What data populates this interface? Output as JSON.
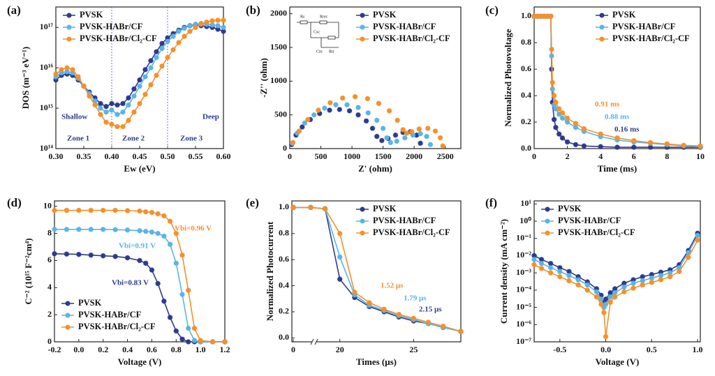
{
  "chart_data": [
    {
      "type": "line",
      "label": "(a)",
      "x_label": "Ew (eV)",
      "y_label": "DOS (m⁻³ eV⁻¹)",
      "ylog": true,
      "legend": "upper left",
      "xlim": [
        0.3,
        0.6
      ],
      "ylim": [
        100000000000000.0,
        3.2e+17
      ],
      "xticks": [
        {
          "value": 0.3,
          "label": "0.30"
        },
        0.35,
        {
          "value": 0.4,
          "label": "0.40"
        },
        0.45,
        {
          "value": 0.5,
          "label": "0.50"
        },
        0.55,
        {
          "value": 0.6,
          "label": "0.60"
        }
      ],
      "yticks": [
        {
          "value": 100000000000000.0,
          "label": "10¹⁴"
        },
        {
          "value": 1000000000000000.0,
          "label": "10¹⁵"
        },
        {
          "value": 1e+16,
          "label": "10¹⁶"
        },
        {
          "value": 1e+17,
          "label": "10¹⁷"
        }
      ],
      "vlines": [
        0.4,
        0.5
      ],
      "annotations": [
        {
          "text": "Shallow",
          "color": "#2e3a8c"
        },
        {
          "text": "Zone 1",
          "color": "#2e3a8c"
        },
        {
          "text": "Zone 2",
          "color": "#2e3a8c"
        },
        {
          "text": "Zone 3",
          "color": "#2e3a8c"
        },
        {
          "text": "Deep",
          "color": "#2e3a8c"
        }
      ],
      "x": [
        0.3,
        0.31,
        0.32,
        0.33,
        0.34,
        0.35,
        0.36,
        0.37,
        0.38,
        0.39,
        0.4,
        0.41,
        0.42,
        0.43,
        0.44,
        0.45,
        0.46,
        0.47,
        0.48,
        0.49,
        0.5,
        0.51,
        0.52,
        0.53,
        0.54,
        0.55,
        0.56,
        0.57,
        0.58,
        0.59,
        0.6
      ],
      "series": [
        {
          "name": "PVSK",
          "color": "#2e3a8c",
          "values": [
            5000000000000000.0,
            6500000000000000.0,
            7000000000000000.0,
            6500000000000000.0,
            5000000000000000.0,
            3500000000000000.0,
            2500000000000000.0,
            1800000000000000.0,
            1300000000000000.0,
            1100000000000000.0,
            1300000000000000.0,
            1200000000000000.0,
            1300000000000000.0,
            1800000000000000.0,
            3000000000000000.0,
            5000000000000000.0,
            9000000000000000.0,
            1.5e+16,
            2.5e+16,
            4e+16,
            5.5e+16,
            7e+16,
            8.5e+16,
            1e+17,
            1.1e+17,
            1.15e+17,
            1.1e+17,
            1.05e+17,
            1e+17,
            9e+16,
            8e+16
          ]
        },
        {
          "name": "PVSK-HABr/CF",
          "color": "#5ab4e5",
          "values": [
            6000000000000000.0,
            7500000000000000.0,
            8000000000000000.0,
            7500000000000000.0,
            5500000000000000.0,
            3500000000000000.0,
            2300000000000000.0,
            1500000000000000.0,
            1000000000000000.0,
            800000000000000.0,
            900000000000000.0,
            700000000000000.0,
            800000000000000.0,
            1200000000000000.0,
            2000000000000000.0,
            3500000000000000.0,
            6000000000000000.0,
            1e+16,
            1.8e+16,
            3e+16,
            4.5e+16,
            6e+16,
            8e+16,
            9.5e+16,
            1.1e+17,
            1.2e+17,
            1.25e+17,
            1.2e+17,
            1.15e+17,
            1.1e+17,
            1e+17
          ]
        },
        {
          "name": "PVSK-HABr/Cl₂-CF",
          "color": "#f5902a",
          "values": [
            7000000000000000.0,
            9000000000000000.0,
            1e+16,
            9000000000000000.0,
            6000000000000000.0,
            3500000000000000.0,
            2000000000000000.0,
            1200000000000000.0,
            700000000000000.0,
            450000000000000.0,
            400000000000000.0,
            350000000000000.0,
            350000000000000.0,
            500000000000000.0,
            800000000000000.0,
            1300000000000000.0,
            2200000000000000.0,
            3800000000000000.0,
            6500000000000000.0,
            1.1e+16,
            1.8e+16,
            2.8e+16,
            4.2e+16,
            6e+16,
            8e+16,
            1e+17,
            1.2e+17,
            1.35e+17,
            1.45e+17,
            1.5e+17,
            1.5e+17
          ]
        }
      ]
    },
    {
      "type": "scatter",
      "label": "(b)",
      "x_label": "Z' (ohm)",
      "y_label": "-Z'' (ohm)",
      "legend": "upper right",
      "xlim": [
        0,
        2750
      ],
      "ylim": [
        0,
        2100
      ],
      "xticks": [
        0,
        500,
        1000,
        1500,
        2000,
        2500
      ],
      "yticks": [
        0,
        500,
        1000,
        1500,
        2000
      ],
      "inset_labels": [
        "Rs",
        "Rrec",
        "Csc",
        "Cm",
        "Rtr"
      ],
      "series": [
        {
          "name": "PVSK",
          "color": "#2e3a8c",
          "x": [
            30,
            100,
            200,
            330,
            480,
            640,
            800,
            960,
            1100,
            1230,
            1330,
            1400,
            1480,
            1580,
            1700,
            1820,
            1940,
            2040,
            2100
          ],
          "values": [
            60,
            200,
            320,
            430,
            520,
            570,
            580,
            560,
            500,
            410,
            300,
            180,
            120,
            150,
            200,
            240,
            250,
            200,
            80
          ]
        },
        {
          "name": "PVSK-HABr/CF",
          "color": "#5ab4e5",
          "x": [
            40,
            120,
            240,
            390,
            560,
            740,
            920,
            1100,
            1260,
            1400,
            1500,
            1560,
            1620,
            1720,
            1850,
            1980,
            2100,
            2200,
            2260
          ],
          "values": [
            80,
            230,
            380,
            500,
            600,
            650,
            650,
            610,
            530,
            420,
            300,
            160,
            90,
            110,
            160,
            200,
            220,
            180,
            60
          ]
        },
        {
          "name": "PVSK-HABr/Cl₂-CF",
          "color": "#f5902a",
          "x": [
            50,
            150,
            290,
            460,
            650,
            850,
            1050,
            1250,
            1430,
            1600,
            1730,
            1820,
            1880,
            1960,
            2080,
            2220,
            2340,
            2420,
            2460
          ],
          "values": [
            90,
            260,
            430,
            570,
            680,
            750,
            770,
            740,
            670,
            560,
            420,
            280,
            230,
            250,
            290,
            300,
            260,
            160,
            40
          ]
        }
      ]
    },
    {
      "type": "line",
      "label": "(c)",
      "x_label": "Time (ms)",
      "y_label": "Normalized Photovoltage",
      "legend": "upper right",
      "xlim": [
        0,
        10
      ],
      "ylim": [
        0,
        1.07
      ],
      "xticks": [
        0,
        2,
        4,
        6,
        8,
        10
      ],
      "yticks": [
        {
          "value": 0,
          "label": "0.0"
        },
        0.2,
        0.4,
        0.6,
        0.8,
        {
          "value": 1,
          "label": "1.0"
        }
      ],
      "annotations": [
        {
          "text": "0.91 ms",
          "color": "#f5902a"
        },
        {
          "text": "0.88 ms",
          "color": "#5ab4e5"
        },
        {
          "text": "0.16 ms",
          "color": "#2e3a8c"
        }
      ],
      "x": [
        0,
        0.2,
        0.4,
        0.6,
        0.8,
        1,
        1.05,
        1.1,
        1.2,
        1.3,
        1.5,
        1.7,
        2,
        2.5,
        3,
        4,
        5,
        6,
        7,
        8,
        9,
        10
      ],
      "series": [
        {
          "name": "PVSK",
          "color": "#2e3a8c",
          "values": [
            1,
            1,
            1,
            1,
            1,
            1,
            0.6,
            0.35,
            0.22,
            0.16,
            0.11,
            0.08,
            0.05,
            0.03,
            0.02,
            0.015,
            0.01,
            0.01,
            0.01,
            0.01,
            0.01,
            0.01
          ]
        },
        {
          "name": "PVSK-HABr/CF",
          "color": "#5ab4e5",
          "values": [
            1,
            1,
            1,
            1,
            1,
            1,
            0.7,
            0.45,
            0.33,
            0.3,
            0.26,
            0.23,
            0.2,
            0.16,
            0.13,
            0.09,
            0.065,
            0.05,
            0.04,
            0.03,
            0.02,
            0.015
          ]
        },
        {
          "name": "PVSK-HABr/Cl₂-CF",
          "color": "#f5902a",
          "values": [
            1,
            1,
            1,
            1,
            1,
            1,
            0.75,
            0.5,
            0.4,
            0.35,
            0.3,
            0.27,
            0.23,
            0.19,
            0.15,
            0.11,
            0.08,
            0.06,
            0.045,
            0.035,
            0.025,
            0.02
          ]
        }
      ]
    },
    {
      "type": "line",
      "label": "(d)",
      "x_label": "Voltage (V)",
      "y_label": "C⁻² (10¹⁵ F⁻²cm⁴)",
      "legend": "lower left",
      "xlim": [
        -0.2,
        1.2
      ],
      "ylim": [
        0,
        10.4
      ],
      "xticks": [
        -0.2,
        {
          "value": 0,
          "label": "0.0"
        },
        0.2,
        0.4,
        0.6,
        0.8,
        {
          "value": 1,
          "label": "1.0"
        },
        1.2
      ],
      "yticks": [
        0,
        2,
        4,
        6,
        8,
        10
      ],
      "annotations": [
        {
          "text": "Vbi=0.83 V",
          "color": "#2e3a8c"
        },
        {
          "text": "Vbi=0.91 V",
          "color": "#5ab4e5"
        },
        {
          "text": "Vbi=0.96 V",
          "color": "#f5902a"
        }
      ],
      "x": [
        -0.2,
        -0.1,
        0,
        0.1,
        0.2,
        0.3,
        0.4,
        0.5,
        0.55,
        0.6,
        0.65,
        0.7,
        0.75,
        0.8,
        0.85,
        0.9,
        0.95,
        1,
        1.1,
        1.2
      ],
      "series": [
        {
          "name": "PVSK",
          "color": "#2e3a8c",
          "values": [
            6.5,
            6.48,
            6.45,
            6.4,
            6.35,
            6.3,
            6.2,
            6,
            5.8,
            5.3,
            4.3,
            3,
            1.8,
            0.8,
            0.2,
            0,
            0,
            0,
            0,
            0
          ]
        },
        {
          "name": "PVSK-HABr/CF",
          "color": "#5ab4e5",
          "values": [
            8.3,
            8.3,
            8.3,
            8.3,
            8.3,
            8.28,
            8.25,
            8.2,
            8.15,
            8.1,
            8,
            7.8,
            7.2,
            5.8,
            3.5,
            1,
            0.1,
            0,
            0,
            0
          ]
        },
        {
          "name": "PVSK-HABr/Cl₂-CF",
          "color": "#f5902a",
          "values": [
            9.7,
            9.7,
            9.7,
            9.7,
            9.7,
            9.7,
            9.68,
            9.65,
            9.6,
            9.55,
            9.45,
            9.3,
            8.9,
            8,
            6.4,
            3.8,
            1,
            0.1,
            0,
            0
          ]
        }
      ]
    },
    {
      "type": "line",
      "label": "(e)",
      "x_label": "Times (μs)",
      "y_label": "Normalized Photocurrent",
      "legend": "upper right",
      "xlim": [
        0,
        28.2
      ],
      "xbreak": [
        3,
        18.5
      ],
      "ylim": [
        -0.03,
        1.05
      ],
      "xticks": [
        0,
        20,
        25
      ],
      "yticks": [
        {
          "value": 0,
          "label": "0.0"
        },
        0.2,
        0.4,
        0.6,
        0.8,
        {
          "value": 1,
          "label": "1.0"
        }
      ],
      "annotations": [
        {
          "text": "1.52 μs",
          "color": "#f5902a"
        },
        {
          "text": "1.79 μs",
          "color": "#5ab4e5"
        },
        {
          "text": "2.15 μs",
          "color": "#2e3a8c"
        }
      ],
      "x": [
        0,
        3,
        19,
        20,
        21,
        22,
        23,
        24,
        25,
        26,
        27,
        28.2
      ],
      "series": [
        {
          "name": "PVSK",
          "color": "#2e3a8c",
          "values": [
            1,
            1,
            0.99,
            0.45,
            0.31,
            0.24,
            0.2,
            0.16,
            0.13,
            0.11,
            0.08,
            0.05
          ]
        },
        {
          "name": "PVSK-HABr/CF",
          "color": "#5ab4e5",
          "values": [
            1,
            1,
            0.99,
            0.62,
            0.33,
            0.25,
            0.21,
            0.17,
            0.14,
            0.11,
            0.08,
            0.05
          ]
        },
        {
          "name": "PVSK-HABr/Cl₂-CF",
          "color": "#f5902a",
          "values": [
            1,
            1,
            0.99,
            0.8,
            0.35,
            0.27,
            0.22,
            0.18,
            0.15,
            0.12,
            0.09,
            0.05
          ]
        }
      ]
    },
    {
      "type": "line",
      "label": "(f)",
      "x_label": "Voltage (V)",
      "y_label": "Current density (mA cm⁻²)",
      "ylog": true,
      "legend": "upper left",
      "xlim": [
        -0.78,
        1.03
      ],
      "ylim": [
        1e-07,
        15
      ],
      "xticks": [
        -0.5,
        {
          "value": 0,
          "label": "0.0"
        },
        0.5,
        {
          "value": 1,
          "label": "1.0"
        }
      ],
      "yticks": [
        {
          "value": 1e-07,
          "label": "10⁻⁷"
        },
        {
          "value": 1e-06,
          "label": "10⁻⁶"
        },
        {
          "value": 1e-05,
          "label": "10⁻⁵"
        },
        {
          "value": 0.0001,
          "label": "10⁻⁴"
        },
        {
          "value": 0.001,
          "label": "10⁻³"
        },
        {
          "value": 0.01,
          "label": "10⁻²"
        },
        {
          "value": 0.1,
          "label": "10⁻¹"
        },
        {
          "value": 1,
          "label": "10⁰"
        },
        {
          "value": 10,
          "label": "10¹"
        }
      ],
      "x": [
        -0.78,
        -0.7,
        -0.6,
        -0.5,
        -0.4,
        -0.3,
        -0.2,
        -0.1,
        -0.05,
        -0.02,
        0,
        0.05,
        0.1,
        0.2,
        0.3,
        0.4,
        0.5,
        0.6,
        0.7,
        0.8,
        0.9,
        1
      ],
      "series": [
        {
          "name": "PVSK",
          "color": "#2e3a8c",
          "values": [
            0.01,
            0.006,
            0.0035,
            0.002,
            0.0012,
            0.0006,
            0.0003,
            0.00012,
            5e-05,
            2e-05,
            3e-05,
            7e-05,
            0.00012,
            0.00025,
            0.0004,
            0.0006,
            0.0008,
            0.0011,
            0.0015,
            0.003,
            0.02,
            0.2
          ]
        },
        {
          "name": "PVSK-HABr/CF",
          "color": "#5ab4e5",
          "values": [
            0.006,
            0.0035,
            0.002,
            0.0012,
            0.0007,
            0.0004,
            0.0002,
            8e-05,
            3e-05,
            1e-05,
            1.5e-05,
            4e-05,
            7e-05,
            0.00015,
            0.00025,
            0.00035,
            0.0005,
            0.0007,
            0.001,
            0.002,
            0.015,
            0.15
          ]
        },
        {
          "name": "PVSK-HABr/Cl₂-CF",
          "color": "#f5902a",
          "values": [
            0.003,
            0.0018,
            0.001,
            0.0006,
            0.00035,
            0.0002,
            0.0001,
            4e-05,
            1.5e-05,
            5e-06,
            2e-07,
            2e-05,
            4e-05,
            8e-05,
            0.00013,
            0.0002,
            0.00028,
            0.0004,
            0.0006,
            0.0012,
            0.008,
            0.08
          ]
        }
      ]
    }
  ]
}
